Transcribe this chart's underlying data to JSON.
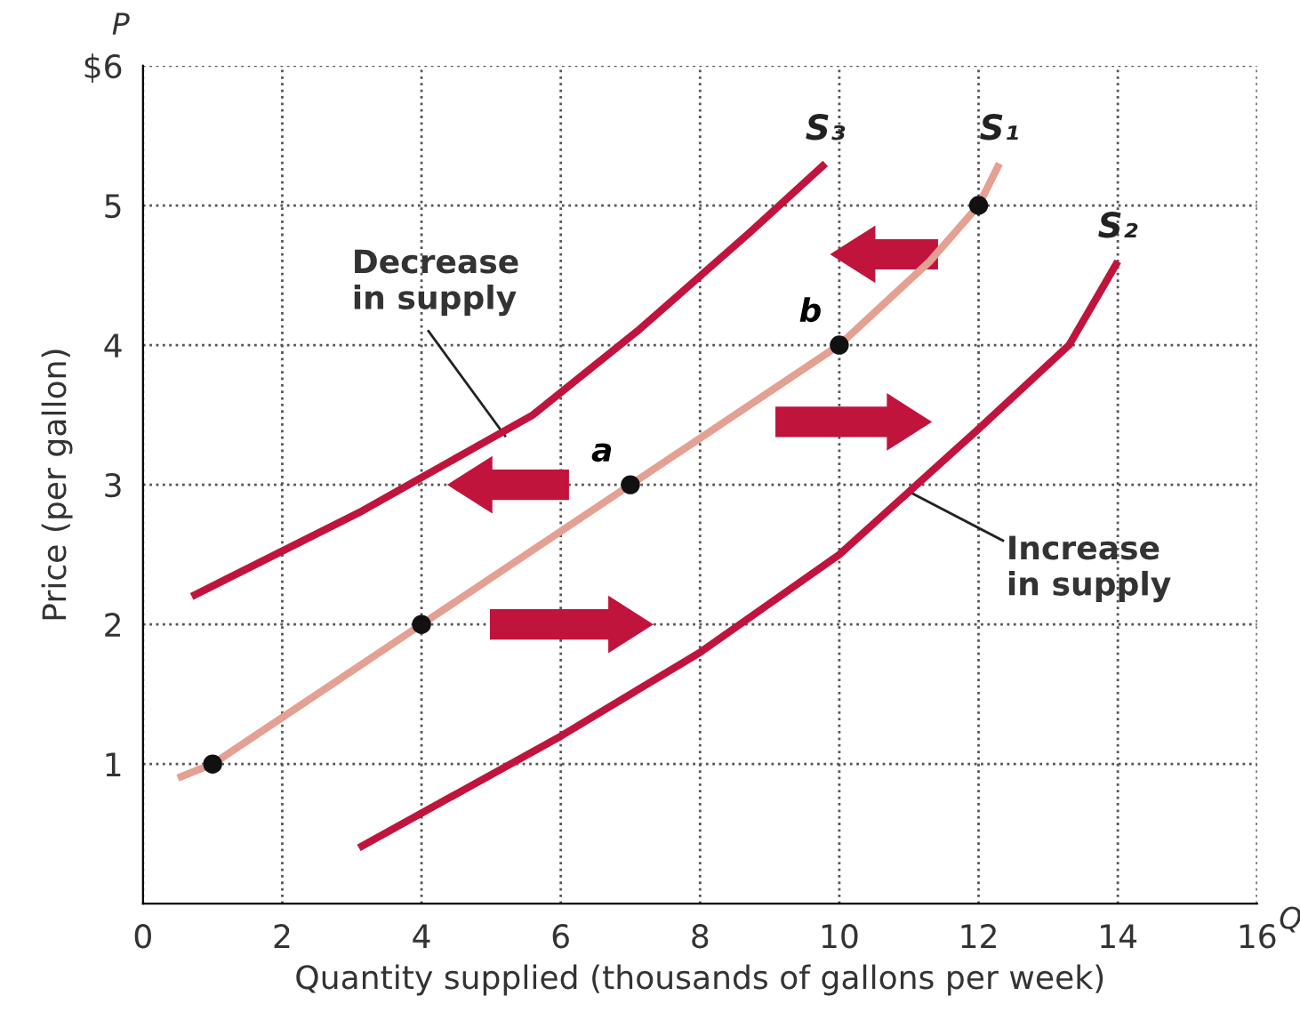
{
  "chart_data": {
    "type": "line",
    "xlabel": "Quantity supplied (thousands of gallons per week)",
    "ylabel": "Price (per gallon)",
    "xlim": [
      0,
      16
    ],
    "ylim": [
      0,
      6
    ],
    "xticks": [
      0,
      2,
      4,
      6,
      8,
      10,
      12,
      14,
      16
    ],
    "yticks": [
      1,
      2,
      3,
      4,
      5,
      {
        "value": 6,
        "label": "$6"
      }
    ],
    "grid": true,
    "series": [
      {
        "name": "S₃",
        "color": "#c0143c",
        "x": [
          0.7,
          3.1,
          5.6,
          7.1,
          8.7,
          9.8
        ],
        "values": [
          2.2,
          2.8,
          3.5,
          4.1,
          4.8,
          5.3
        ]
      },
      {
        "name": "S₁",
        "color": "#e4a093",
        "x": [
          0.5,
          1,
          4,
          7,
          10,
          11.3,
          12,
          12.3
        ],
        "values": [
          0.9,
          1,
          2,
          3,
          4,
          4.6,
          5,
          5.3
        ]
      },
      {
        "name": "S₂",
        "color": "#c0143c",
        "x": [
          3.1,
          6,
          8,
          10,
          12,
          13.3,
          14
        ],
        "values": [
          0.4,
          1.2,
          1.8,
          2.5,
          3.4,
          4,
          4.6
        ]
      },
      {
        "type": "scatter",
        "marker": "circle",
        "color": "#111111",
        "x": [
          1,
          4,
          7,
          10,
          12
        ],
        "values": [
          1,
          2,
          3,
          4,
          5
        ]
      }
    ],
    "annotations": [
      {
        "text": "a",
        "x": 7,
        "y": 3
      },
      {
        "text": "b",
        "x": 10,
        "y": 4
      },
      {
        "text": "Decrease\nin supply",
        "x": 5.2,
        "y": 3.35
      },
      {
        "text": "Increase\nin supply",
        "x": 11,
        "y": 2.95
      },
      "P",
      "Q"
    ]
  }
}
